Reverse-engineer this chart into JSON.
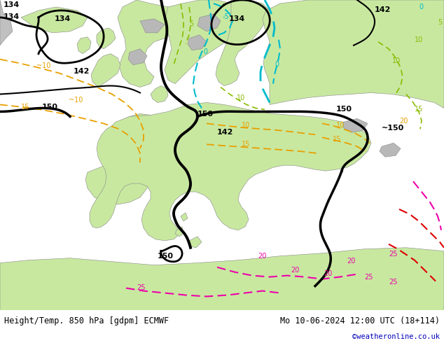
{
  "title_left": "Height/Temp. 850 hPa [gdpm] ECMWF",
  "title_right": "Mo 10-06-2024 12:00 UTC (18+114)",
  "credit": "©weatheronline.co.uk",
  "figsize": [
    6.34,
    4.9
  ],
  "dpi": 100,
  "bottom_bar_color": "#e0e0e0",
  "bottom_text_color": "#000000",
  "credit_color": "#0000bb",
  "sea_color": "#d8d8d8",
  "land_color": "#c8e8a0",
  "mountain_color": "#b0b0b0",
  "label_fontsize": 8,
  "title_fontsize": 8.5,
  "geo_black": "#000000",
  "temp_orange": "#e8a000",
  "temp_cyan": "#00bbcc",
  "temp_green": "#88bb00",
  "temp_pink": "#ee00aa",
  "temp_red": "#dd0000"
}
